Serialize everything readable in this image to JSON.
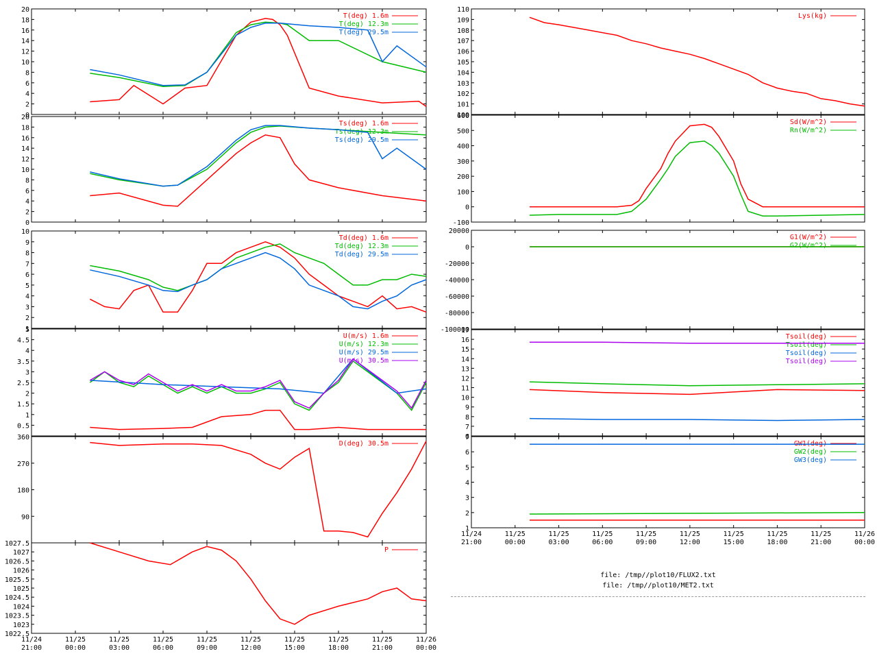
{
  "files": [
    "file: /tmp//plot10/FLUX2.txt",
    "file: /tmp//plot10/MET2.txt"
  ],
  "time_axis": {
    "ticks": [
      "11/24 21:00",
      "11/25 00:00",
      "11/25 03:00",
      "11/25 06:00",
      "11/25 09:00",
      "11/25 12:00",
      "11/25 15:00",
      "11/25 18:00",
      "11/25 21:00",
      "11/26 00:00"
    ]
  },
  "chart_data": [
    {
      "id": "T",
      "type": "line",
      "ylim": [
        0,
        20
      ],
      "yticks": [
        "20",
        "18",
        "16",
        "14",
        "12",
        "10",
        "8",
        "6",
        "4",
        "2",
        "0"
      ],
      "series": [
        {
          "name": "T(deg)  1.6m",
          "color": "#ff0000",
          "x": [
            1,
            3,
            4,
            6,
            7.5,
            9,
            11,
            12,
            13,
            13.5,
            14,
            14.5,
            16,
            18,
            21,
            23.5,
            24
          ],
          "y": [
            2.4,
            2.8,
            5.5,
            2,
            5,
            5.5,
            15,
            17.5,
            18.2,
            18,
            17,
            15,
            5,
            3.5,
            2.2,
            2.5,
            1.5
          ]
        },
        {
          "name": "T(deg) 12.3m",
          "color": "#00bb00",
          "x": [
            1,
            3,
            6,
            7.5,
            9,
            11,
            12,
            13,
            14,
            14.5,
            16,
            18,
            21,
            24
          ],
          "y": [
            7.8,
            7,
            5.3,
            5.5,
            8,
            15.5,
            17,
            17.5,
            17.3,
            17,
            14,
            14,
            10,
            8
          ]
        },
        {
          "name": "T(deg) 29.5m",
          "color": "#0066dd",
          "x": [
            1,
            3,
            6,
            7.5,
            9,
            11,
            12,
            13,
            14,
            16,
            18,
            20,
            21,
            22,
            24
          ],
          "y": [
            8.5,
            7.5,
            5.5,
            5.6,
            8,
            15,
            16.5,
            17.3,
            17.3,
            16.8,
            16.5,
            16,
            10,
            13,
            9
          ]
        }
      ]
    },
    {
      "id": "Ts",
      "type": "line",
      "ylim": [
        0,
        20
      ],
      "yticks": [
        "20",
        "18",
        "16",
        "14",
        "12",
        "10",
        "8",
        "6",
        "4",
        "2",
        "0"
      ],
      "series": [
        {
          "name": "Ts(deg)  1.6m",
          "color": "#ff0000",
          "x": [
            1,
            3,
            6,
            7,
            9,
            11,
            12,
            13,
            14,
            15,
            16,
            18,
            21,
            24
          ],
          "y": [
            5,
            5.5,
            3.2,
            3,
            8,
            13,
            15,
            16.5,
            16,
            11,
            8,
            6.5,
            5,
            4
          ]
        },
        {
          "name": "Ts(deg) 12.3m",
          "color": "#00bb00",
          "x": [
            1,
            3,
            6,
            7,
            9,
            11,
            12,
            13,
            14,
            16,
            18,
            21,
            24
          ],
          "y": [
            9.2,
            8,
            6.8,
            7,
            10,
            15,
            17,
            18,
            18.2,
            17.8,
            17.5,
            17,
            16.5
          ]
        },
        {
          "name": "Ts(deg) 29.5m",
          "color": "#0066dd",
          "x": [
            1,
            3,
            6,
            7,
            9,
            11,
            12,
            13,
            14,
            16,
            18,
            20,
            21,
            22,
            24
          ],
          "y": [
            9.5,
            8.2,
            6.8,
            7,
            10.5,
            15.5,
            17.5,
            18.3,
            18.3,
            17.8,
            17.5,
            17,
            12,
            14,
            10
          ]
        }
      ]
    },
    {
      "id": "Td",
      "type": "line",
      "ylim": [
        1,
        10
      ],
      "yticks": [
        "10",
        "9",
        "8",
        "7",
        "6",
        "5",
        "4",
        "3",
        "2",
        "1"
      ],
      "series": [
        {
          "name": "Td(deg)  1.6m",
          "color": "#ff0000",
          "x": [
            1,
            2,
            3,
            4,
            5,
            6,
            7,
            8,
            9,
            10,
            11,
            12,
            13,
            14,
            15,
            16,
            17,
            18,
            19,
            20,
            21,
            22,
            23,
            24
          ],
          "y": [
            3.7,
            3,
            2.8,
            4.5,
            5,
            2.5,
            2.5,
            4.5,
            7,
            7,
            8,
            8.5,
            9,
            8.5,
            7.5,
            6,
            5,
            4,
            3.5,
            3,
            4,
            2.8,
            3,
            2.5
          ]
        },
        {
          "name": "Td(deg) 12.3m",
          "color": "#00bb00",
          "x": [
            1,
            3,
            5,
            6,
            7,
            8,
            9,
            10,
            11,
            12,
            13,
            14,
            15,
            16,
            17,
            18,
            19,
            20,
            21,
            22,
            23,
            24
          ],
          "y": [
            6.8,
            6.3,
            5.5,
            4.8,
            4.5,
            5,
            5.5,
            6.5,
            7.5,
            8,
            8.5,
            8.8,
            8,
            7.5,
            7,
            6,
            5,
            5,
            5.5,
            5.5,
            6,
            5.8
          ]
        },
        {
          "name": "Td(deg) 29.5m",
          "color": "#0066dd",
          "x": [
            1,
            3,
            5,
            6,
            7,
            8,
            9,
            10,
            11,
            12,
            13,
            14,
            15,
            16,
            17,
            18,
            19,
            20,
            21,
            22,
            23,
            24
          ],
          "y": [
            6.4,
            5.8,
            5,
            4.5,
            4.4,
            5,
            5.5,
            6.5,
            7,
            7.5,
            8,
            7.5,
            6.5,
            5,
            4.5,
            4,
            3,
            2.8,
            3.5,
            4,
            5,
            5.5
          ]
        }
      ]
    },
    {
      "id": "U",
      "type": "line",
      "ylim": [
        0,
        5
      ],
      "yticks": [
        "5",
        "4.5",
        "4",
        "3.5",
        "3",
        "2.5",
        "2",
        "1.5",
        "1",
        "0.5"
      ],
      "series": [
        {
          "name": "U(m/s)  1.6m",
          "color": "#ff0000",
          "x": [
            1,
            3,
            6,
            8,
            10,
            12,
            13,
            14,
            15,
            16,
            18,
            20,
            22,
            24
          ],
          "y": [
            0.4,
            0.3,
            0.35,
            0.4,
            0.9,
            1,
            1.2,
            1.2,
            0.3,
            0.3,
            0.4,
            0.3,
            0.3,
            0.3
          ]
        },
        {
          "name": "U(m/s) 12.3m",
          "color": "#00bb00",
          "x": [
            1,
            2,
            3,
            4,
            5,
            6,
            7,
            8,
            9,
            10,
            11,
            12,
            13,
            14,
            15,
            16,
            17,
            18,
            19,
            20,
            21,
            22,
            23,
            24
          ],
          "y": [
            2.5,
            3,
            2.5,
            2.3,
            2.8,
            2.4,
            2,
            2.3,
            2,
            2.3,
            2,
            2,
            2.2,
            2.5,
            1.5,
            1.2,
            2,
            2.5,
            3.5,
            3,
            2.5,
            2,
            1.2,
            2.5
          ]
        },
        {
          "name": "U(m/s) 29.5m",
          "color": "#0066dd",
          "x": [
            1,
            6,
            10,
            14,
            17,
            19,
            22,
            24
          ],
          "y": [
            2.6,
            2.4,
            2.3,
            2.2,
            2,
            3.6,
            2,
            2.2
          ]
        },
        {
          "name": "U(m/s) 30.5m",
          "color": "#aa00ee",
          "x": [
            1,
            2,
            3,
            4,
            5,
            6,
            7,
            8,
            9,
            10,
            11,
            12,
            13,
            14,
            15,
            16,
            17,
            18,
            19,
            20,
            21,
            22,
            23,
            24
          ],
          "y": [
            2.6,
            3,
            2.6,
            2.4,
            2.9,
            2.5,
            2.1,
            2.4,
            2.1,
            2.4,
            2.1,
            2.1,
            2.3,
            2.6,
            1.6,
            1.3,
            2,
            2.6,
            3.6,
            3.1,
            2.6,
            2.1,
            1.3,
            2.6
          ]
        }
      ]
    },
    {
      "id": "D",
      "type": "line",
      "ylim": [
        0,
        360
      ],
      "yticks": [
        "360",
        "270",
        "180",
        "90"
      ],
      "series": [
        {
          "name": "D(deg)  30.5m",
          "color": "#ff0000",
          "x": [
            1,
            3,
            6,
            8,
            10,
            12,
            13,
            14,
            15,
            16,
            17,
            18,
            19,
            20,
            21,
            22,
            23,
            24
          ],
          "y": [
            340,
            330,
            335,
            335,
            330,
            300,
            270,
            250,
            290,
            320,
            40,
            40,
            35,
            20,
            100,
            170,
            250,
            345
          ]
        }
      ]
    },
    {
      "id": "P",
      "type": "line",
      "ylim": [
        1022.5,
        1027.5
      ],
      "yticks": [
        "1027.5",
        "1027",
        "1026.5",
        "1026",
        "1025.5",
        "1025",
        "1024.5",
        "1024",
        "1023.5",
        "1023",
        "1022.5"
      ],
      "series": [
        {
          "name": "P",
          "color": "#ff0000",
          "x": [
            1,
            3,
            5,
            6.5,
            8,
            9,
            10,
            11,
            12,
            13,
            14,
            15,
            16,
            18,
            20,
            21,
            22,
            23,
            24
          ],
          "y": [
            1027.5,
            1027,
            1026.5,
            1026.3,
            1027,
            1027.3,
            1027.1,
            1026.5,
            1025.5,
            1024.3,
            1023.3,
            1023,
            1023.5,
            1024,
            1024.4,
            1024.8,
            1025,
            1024.4,
            1024.3
          ]
        }
      ]
    },
    {
      "id": "Lys",
      "type": "line",
      "ylim": [
        100,
        110
      ],
      "yticks": [
        "110",
        "109",
        "108",
        "107",
        "106",
        "105",
        "104",
        "103",
        "102",
        "101",
        "100"
      ],
      "series": [
        {
          "name": "Lys(kg)",
          "color": "#ff0000",
          "x": [
            1,
            2,
            3,
            5,
            7,
            8,
            9,
            10,
            11,
            12,
            13,
            14,
            15,
            16,
            17,
            18,
            19,
            20,
            21,
            22,
            23,
            24
          ],
          "y": [
            109.2,
            108.7,
            108.5,
            108,
            107.5,
            107,
            106.7,
            106.3,
            106,
            105.7,
            105.3,
            104.8,
            104.3,
            103.8,
            103,
            102.5,
            102.2,
            102,
            101.5,
            101.3,
            101,
            100.8
          ]
        }
      ]
    },
    {
      "id": "Rad",
      "type": "line",
      "ylim": [
        -100,
        600
      ],
      "yticks": [
        "600",
        "500",
        "400",
        "300",
        "200",
        "100",
        "0",
        "-100"
      ],
      "series": [
        {
          "name": "Sd(W/m^2)",
          "color": "#ff0000",
          "x": [
            1,
            7,
            8,
            8.5,
            9,
            10,
            10.5,
            11,
            12,
            13,
            13.5,
            14,
            15,
            15.5,
            16,
            17,
            18,
            24
          ],
          "y": [
            0,
            0,
            10,
            40,
            120,
            250,
            350,
            430,
            530,
            540,
            520,
            460,
            300,
            150,
            50,
            0,
            0,
            0
          ]
        },
        {
          "name": "Rn(W/m^2)",
          "color": "#00bb00",
          "x": [
            1,
            3,
            7,
            8,
            9,
            10,
            10.5,
            11,
            12,
            13,
            13.5,
            14,
            15,
            15.5,
            16,
            17,
            18,
            24
          ],
          "y": [
            -55,
            -50,
            -50,
            -30,
            50,
            180,
            250,
            330,
            420,
            430,
            400,
            350,
            200,
            80,
            -30,
            -60,
            -60,
            -50
          ]
        }
      ]
    },
    {
      "id": "G",
      "type": "line",
      "ylim": [
        -100000,
        20000
      ],
      "yticks": [
        "20000",
        "0",
        "-20000",
        "-40000",
        "-60000",
        "-80000",
        "-100000"
      ],
      "series": [
        {
          "name": "G1(W/m^2)",
          "color": "#ff0000",
          "x": [
            1,
            24
          ],
          "y": [
            0,
            0
          ]
        },
        {
          "name": "G2(W/m^2)",
          "color": "#00bb00",
          "x": [
            1,
            24
          ],
          "y": [
            0,
            0
          ]
        }
      ]
    },
    {
      "id": "Tsoil",
      "type": "line",
      "ylim": [
        6,
        17
      ],
      "yticks": [
        "17",
        "16",
        "15",
        "14",
        "13",
        "12",
        "11",
        "10",
        "9",
        "8",
        "7",
        "6"
      ],
      "series": [
        {
          "name": "Tsoil(deg)",
          "color": "#ff0000",
          "x": [
            1,
            6,
            12,
            18,
            24
          ],
          "y": [
            10.8,
            10.5,
            10.3,
            10.8,
            10.7
          ]
        },
        {
          "name": "Tsoil(deg)",
          "color": "#00bb00",
          "x": [
            1,
            6,
            12,
            18,
            24
          ],
          "y": [
            11.6,
            11.4,
            11.2,
            11.3,
            11.4
          ]
        },
        {
          "name": "Tsoil(deg)",
          "color": "#0066dd",
          "x": [
            1,
            6,
            12,
            18,
            24
          ],
          "y": [
            7.8,
            7.7,
            7.7,
            7.6,
            7.7
          ]
        },
        {
          "name": "Tsoil(deg)",
          "color": "#aa00ee",
          "x": [
            1,
            6,
            12,
            18,
            24
          ],
          "y": [
            15.7,
            15.7,
            15.6,
            15.6,
            15.6
          ]
        }
      ]
    },
    {
      "id": "GW",
      "type": "line",
      "ylim": [
        1,
        7
      ],
      "yticks": [
        "7",
        "6",
        "5",
        "4",
        "3",
        "2",
        "1"
      ],
      "series": [
        {
          "name": "GW1(deg)",
          "color": "#ff0000",
          "x": [
            1,
            24
          ],
          "y": [
            1.5,
            1.5
          ]
        },
        {
          "name": "GW2(deg)",
          "color": "#00bb00",
          "x": [
            1,
            12,
            24
          ],
          "y": [
            1.9,
            1.95,
            2
          ]
        },
        {
          "name": "GW3(deg)",
          "color": "#0066dd",
          "x": [
            1,
            24
          ],
          "y": [
            6.5,
            6.5
          ]
        }
      ]
    }
  ]
}
